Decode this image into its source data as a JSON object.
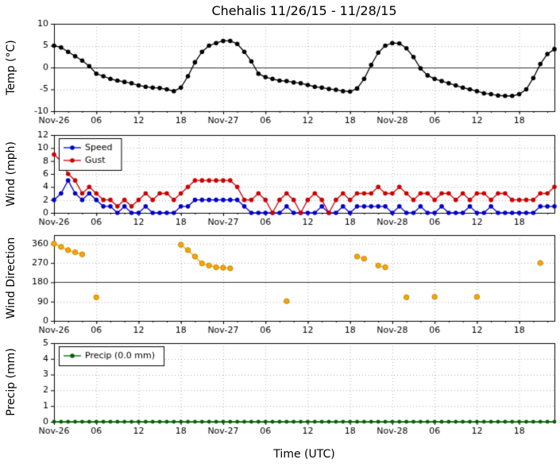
{
  "title": "Chehalis 11/26/15 - 11/28/15",
  "xlabel": "Time (UTC)",
  "chart_data": {
    "type": "line",
    "x_description": "hours 0-71, hourly from Nov-26 00:00 UTC",
    "xlim": [
      0,
      71
    ],
    "grid": "dotted",
    "xticks": [
      {
        "pos": 0,
        "label": "Nov-26"
      },
      {
        "pos": 6,
        "label": "06"
      },
      {
        "pos": 12,
        "label": "12"
      },
      {
        "pos": 18,
        "label": "18"
      },
      {
        "pos": 24,
        "label": "Nov-27"
      },
      {
        "pos": 30,
        "label": "06"
      },
      {
        "pos": 36,
        "label": "12"
      },
      {
        "pos": 42,
        "label": "18"
      },
      {
        "pos": 48,
        "label": "Nov-28"
      },
      {
        "pos": 54,
        "label": "06"
      },
      {
        "pos": 60,
        "label": "12"
      },
      {
        "pos": 66,
        "label": "18"
      }
    ],
    "panels": [
      {
        "ylabel": "Temp (°C)",
        "ylim": [
          -10,
          10
        ],
        "yticks": [
          10,
          5,
          0,
          -5,
          -10
        ],
        "hline": 0,
        "series": [
          {
            "name": "Temp",
            "color": "#000000",
            "marker_r": 2.8,
            "values": [
              5.0,
              4.6,
              3.6,
              2.6,
              1.6,
              0.3,
              -1.4,
              -2.0,
              -2.6,
              -3.0,
              -3.3,
              -3.6,
              -4.1,
              -4.4,
              -4.6,
              -4.7,
              -5.0,
              -5.4,
              -4.6,
              -2.0,
              1.2,
              3.6,
              5.0,
              5.6,
              6.1,
              6.1,
              5.4,
              3.6,
              1.4,
              -1.4,
              -2.2,
              -2.6,
              -3.0,
              -3.1,
              -3.4,
              -3.6,
              -4.0,
              -4.4,
              -4.6,
              -4.9,
              -5.1,
              -5.4,
              -5.5,
              -4.8,
              -2.6,
              0.6,
              3.4,
              5.0,
              5.6,
              5.5,
              4.4,
              2.4,
              -0.2,
              -1.8,
              -2.6,
              -3.1,
              -3.6,
              -4.1,
              -4.6,
              -5.0,
              -5.4,
              -5.9,
              -6.1,
              -6.4,
              -6.5,
              -6.5,
              -6.1,
              -5.0,
              -2.4,
              0.8,
              3.1,
              4.2
            ]
          }
        ]
      },
      {
        "ylabel": "Wind (mph)",
        "ylim": [
          0,
          12
        ],
        "yticks": [
          12,
          10,
          8,
          6,
          4,
          2,
          0
        ],
        "legend": [
          {
            "label": "Speed",
            "color": "#0000cd"
          },
          {
            "label": "Gust",
            "color": "#cc0000"
          }
        ],
        "series": [
          {
            "name": "Speed",
            "color": "#0000cd",
            "marker_r": 2.8,
            "values": [
              2,
              3,
              5,
              3,
              2,
              3,
              2,
              1,
              1,
              0,
              1,
              0,
              0,
              1,
              0,
              0,
              0,
              0,
              1,
              1,
              2,
              2,
              2,
              2,
              2,
              2,
              2,
              1,
              0,
              0,
              0,
              0,
              0,
              1,
              0,
              0,
              0,
              0,
              1,
              0,
              0,
              1,
              0,
              1,
              1,
              1,
              1,
              1,
              0,
              1,
              0,
              0,
              1,
              0,
              0,
              1,
              0,
              0,
              0,
              1,
              0,
              0,
              1,
              0,
              0,
              0,
              0,
              0,
              0,
              1,
              1,
              1
            ]
          },
          {
            "name": "Gust",
            "color": "#cc0000",
            "marker_r": 2.8,
            "values": [
              9,
              8,
              6,
              5,
              3,
              4,
              3,
              2,
              2,
              1,
              2,
              1,
              2,
              3,
              2,
              3,
              3,
              2,
              3,
              4,
              5,
              5,
              5,
              5,
              5,
              5,
              4,
              2,
              2,
              3,
              2,
              0,
              2,
              3,
              2,
              0,
              2,
              3,
              2,
              0,
              2,
              3,
              2,
              3,
              3,
              3,
              4,
              3,
              3,
              4,
              3,
              2,
              3,
              3,
              2,
              3,
              3,
              2,
              3,
              2,
              3,
              3,
              2,
              3,
              3,
              2,
              2,
              2,
              2,
              3,
              3,
              4
            ]
          }
        ]
      },
      {
        "ylabel": "Wind Direction",
        "ylim": [
          0,
          400
        ],
        "yticks": [
          360,
          270,
          180,
          90,
          0
        ],
        "hline": 180,
        "series": [
          {
            "name": "Direction",
            "color": "#ffa500",
            "edge": "#b8860b",
            "marker_r": 3.2,
            "values": [
              360,
              345,
              330,
              320,
              310,
              null,
              110,
              null,
              null,
              null,
              null,
              null,
              null,
              null,
              null,
              null,
              null,
              null,
              355,
              330,
              300,
              268,
              258,
              250,
              248,
              245,
              null,
              null,
              null,
              null,
              null,
              null,
              null,
              92,
              null,
              null,
              null,
              null,
              null,
              null,
              null,
              null,
              null,
              300,
              290,
              null,
              258,
              250,
              null,
              null,
              110,
              null,
              null,
              null,
              112,
              null,
              null,
              null,
              null,
              null,
              112,
              null,
              null,
              null,
              null,
              null,
              null,
              null,
              null,
              270,
              null,
              null
            ]
          }
        ]
      },
      {
        "ylabel": "Precip (mm)",
        "ylim": [
          0,
          5
        ],
        "yticks": [
          5,
          4,
          3,
          2,
          1,
          0
        ],
        "legend": [
          {
            "label": "Precip (0.0 mm)",
            "color": "#006400"
          }
        ],
        "series": [
          {
            "name": "Precip",
            "color": "#006400",
            "marker_r": 2.4,
            "values": [
              0,
              0,
              0,
              0,
              0,
              0,
              0,
              0,
              0,
              0,
              0,
              0,
              0,
              0,
              0,
              0,
              0,
              0,
              0,
              0,
              0,
              0,
              0,
              0,
              0,
              0,
              0,
              0,
              0,
              0,
              0,
              0,
              0,
              0,
              0,
              0,
              0,
              0,
              0,
              0,
              0,
              0,
              0,
              0,
              0,
              0,
              0,
              0,
              0,
              0,
              0,
              0,
              0,
              0,
              0,
              0,
              0,
              0,
              0,
              0,
              0,
              0,
              0,
              0,
              0,
              0,
              0,
              0,
              0,
              0,
              0,
              0
            ]
          }
        ]
      }
    ]
  }
}
